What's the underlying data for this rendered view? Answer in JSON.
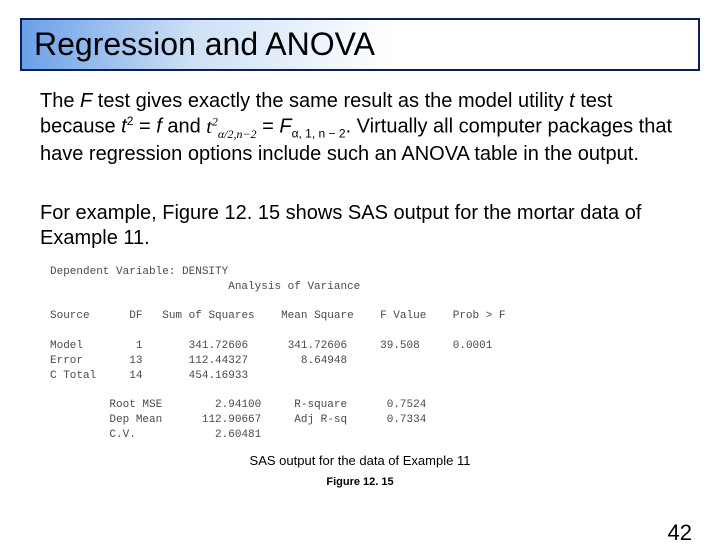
{
  "title": "Regression and ANOVA",
  "para1_a": "The ",
  "para1_F": "F",
  "para1_b": " test gives exactly the same result as the model utility ",
  "para1_t": "t",
  "para1_c": " test because ",
  "para1_t2": "t",
  "para1_d": " = ",
  "para1_f_low": "f",
  "para1_e": " and ",
  "para1_lhs": "t",
  "para1_lhs_sub": "α/2,n−2",
  "para1_eq": " = ",
  "para1_rhs_F": "F",
  "para1_rhs_sub": "α, 1, n − 2",
  "para1_f": ". Virtually all computer packages that have regression options include such an ANOVA table in the output.",
  "para2": "For example, Figure 12. 15 shows SAS output for the mortar data of Example 11.",
  "sas": {
    "dep_label": "Dependent Variable: DENSITY",
    "aov_label": "Analysis of Variance",
    "hdr_source": "Source",
    "hdr_df": "DF",
    "hdr_ss": "Sum of Squares",
    "hdr_ms": "Mean Square",
    "hdr_fv": "F Value",
    "hdr_pf": "Prob > F",
    "r1_src": "Model",
    "r1_df": "1",
    "r1_ss": "341.72606",
    "r1_ms": "341.72606",
    "r1_fv": "39.508",
    "r1_pf": "0.0001",
    "r2_src": "Error",
    "r2_df": "13",
    "r2_ss": "112.44327",
    "r2_ms": "8.64948",
    "r3_src": "C Total",
    "r3_df": "14",
    "r3_ss": "454.16933",
    "s1_lab": "Root MSE",
    "s1_val": "2.94100",
    "s1_rlab": "R-square",
    "s1_rval": "0.7524",
    "s2_lab": "Dep Mean",
    "s2_val": "112.90667",
    "s2_rlab": "Adj R-sq",
    "s2_rval": "0.7334",
    "s3_lab": "C.V.",
    "s3_val": "2.60481"
  },
  "caption1": "SAS output for the data of Example 11",
  "caption2": "Figure 12. 15",
  "page": "42"
}
